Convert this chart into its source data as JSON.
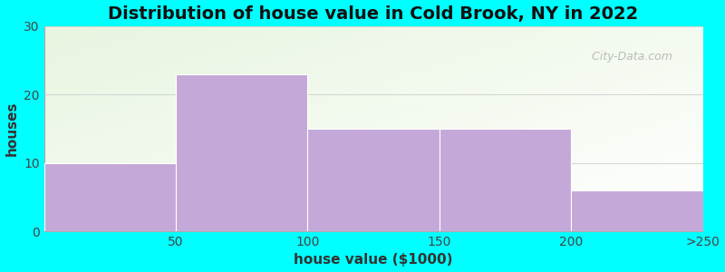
{
  "title": "Distribution of house value in Cold Brook, NY in 2022",
  "xlabel": "house value ($1000)",
  "ylabel": "houses",
  "bar_labels": [
    "50",
    "100",
    "150",
    "200",
    ">250"
  ],
  "bar_heights": [
    10,
    23,
    15,
    15,
    6
  ],
  "bar_color": "#C4A8D8",
  "bar_edgecolor": "#ffffff",
  "ylim": [
    0,
    30
  ],
  "yticks": [
    0,
    10,
    20,
    30
  ],
  "xlim": [
    0,
    5
  ],
  "xtick_positions": [
    0.5,
    1.5,
    2.5,
    3.5,
    4.5
  ],
  "xedge_positions": [
    0,
    1,
    2,
    3,
    4,
    5
  ],
  "xedge_labels": [
    "",
    "50",
    "100",
    "150",
    "200",
    ">250"
  ],
  "background_outer": "#00FFFF",
  "plot_bg_top_left": "#E8F5E0",
  "plot_bg_bottom_right": "#F8FFF8",
  "watermark": "  City-Data.com",
  "title_fontsize": 14,
  "axis_label_fontsize": 11,
  "tick_fontsize": 10,
  "bar_width": 1.0
}
